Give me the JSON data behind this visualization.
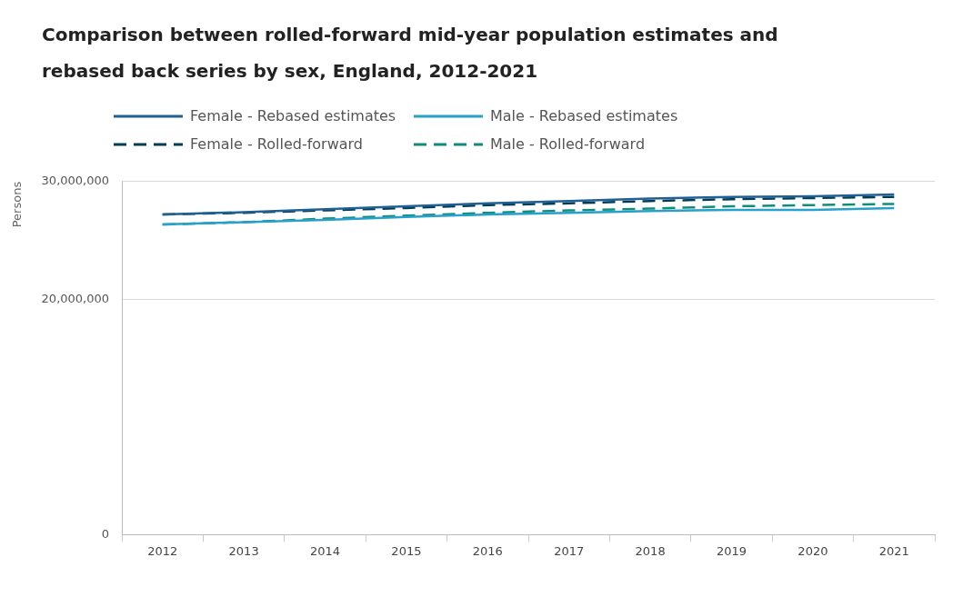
{
  "chart_data": {
    "type": "line",
    "title": "Comparison between rolled-forward mid-year population estimates and rebased back series by sex, England, 2012-2021",
    "ylabel": "Persons",
    "categories": [
      "2012",
      "2013",
      "2014",
      "2015",
      "2016",
      "2017",
      "2018",
      "2019",
      "2020",
      "2021"
    ],
    "series": [
      {
        "name": "Female - Rebased estimates",
        "color": "#206095",
        "line_style": "solid",
        "values": [
          27200000,
          27400000,
          27650000,
          27900000,
          28150000,
          28350000,
          28550000,
          28700000,
          28750000,
          28900000
        ]
      },
      {
        "name": "Male - Rebased estimates",
        "color": "#27a0cc",
        "line_style": "solid",
        "values": [
          26350000,
          26550000,
          26750000,
          27000000,
          27200000,
          27350000,
          27500000,
          27600000,
          27600000,
          27750000
        ]
      },
      {
        "name": "Female - Rolled-forward",
        "color": "#003c57",
        "line_style": "dashed",
        "values": [
          27200000,
          27350000,
          27550000,
          27750000,
          28000000,
          28150000,
          28350000,
          28500000,
          28600000,
          28700000
        ]
      },
      {
        "name": "Male - Rolled-forward",
        "color": "#118c7b",
        "line_style": "dashed",
        "values": [
          26350000,
          26550000,
          26850000,
          27100000,
          27350000,
          27550000,
          27700000,
          27900000,
          28000000,
          28100000
        ]
      }
    ],
    "ylim": [
      0,
      30000000
    ],
    "yticks": [
      0,
      {
        "value": 20000000,
        "label": "20,000,000"
      },
      {
        "value": 30000000,
        "label": "30,000,000"
      }
    ],
    "grid": "y",
    "legend": "top left",
    "marker": "none"
  }
}
